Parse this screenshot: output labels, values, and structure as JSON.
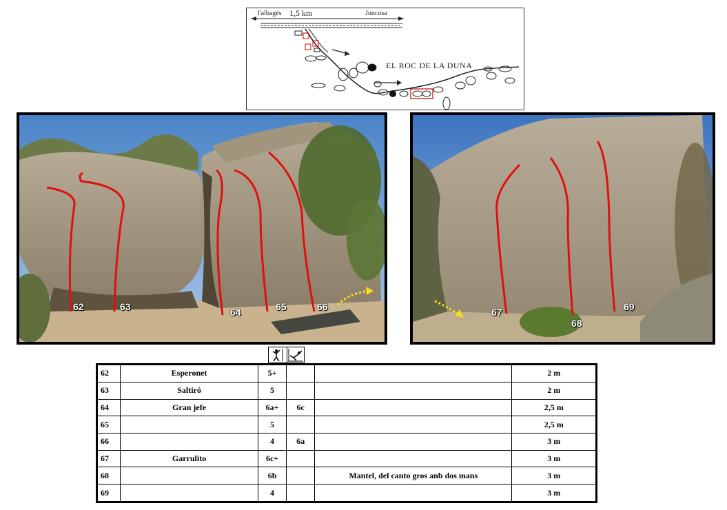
{
  "map": {
    "left_label": "l'albagés",
    "distance": "1,5 km",
    "right_label": "Juncosa",
    "title": "EL ROC DE LA DUNA"
  },
  "photos": {
    "left_routes": [
      "62",
      "63",
      "64",
      "65",
      "66"
    ],
    "right_routes": [
      "67",
      "68",
      "69"
    ],
    "route_color": "#e01010",
    "arrow_color": "#f4e016"
  },
  "icons": {
    "left": "standing-climber-icon",
    "right": "sitting-start-icon"
  },
  "table": {
    "rows": [
      {
        "num": "62",
        "name": "Esperonet",
        "grade": "5+",
        "grade_sit": "",
        "desc": "",
        "height": "2 m"
      },
      {
        "num": "63",
        "name": "Saltiró",
        "grade": "5",
        "grade_sit": "",
        "desc": "",
        "height": "2 m"
      },
      {
        "num": "64",
        "name": "Gran jefe",
        "grade": "6a+",
        "grade_sit": "6c",
        "desc": "",
        "height": "2,5 m"
      },
      {
        "num": "65",
        "name": "",
        "grade": "5",
        "grade_sit": "",
        "desc": "",
        "height": "2,5 m"
      },
      {
        "num": "66",
        "name": "",
        "grade": "4",
        "grade_sit": "6a",
        "desc": "",
        "height": "3 m"
      },
      {
        "num": "67",
        "name": "Garrulito",
        "grade": "6c+",
        "grade_sit": "",
        "desc": "",
        "height": "3 m"
      },
      {
        "num": "68",
        "name": "",
        "grade": "6b",
        "grade_sit": "",
        "desc": "Mantel, del canto gros anb dos mans",
        "height": "3 m"
      },
      {
        "num": "69",
        "name": "",
        "grade": "4",
        "grade_sit": "",
        "desc": "",
        "height": "3 m"
      }
    ]
  }
}
